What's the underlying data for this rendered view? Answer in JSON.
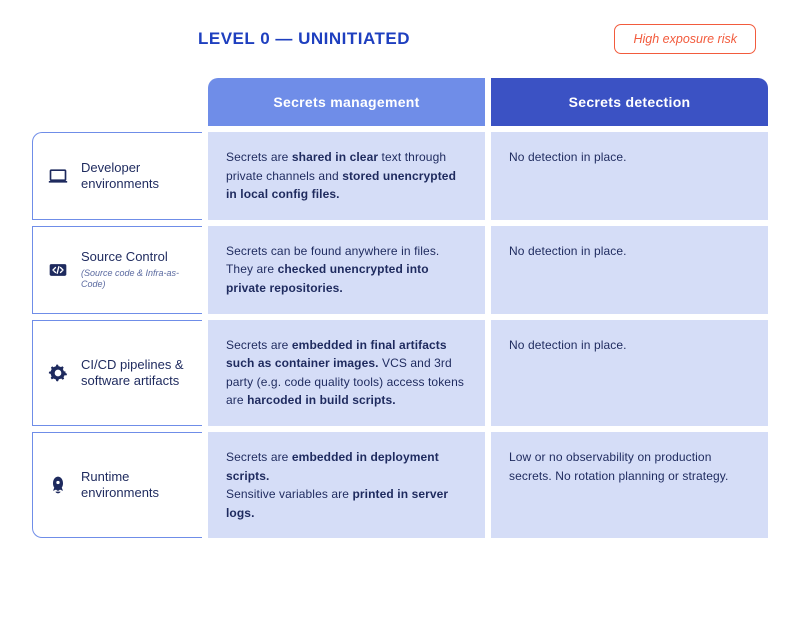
{
  "header": {
    "title": "LEVEL 0 — UNINITIATED",
    "risk_label": "High exposure risk"
  },
  "colors": {
    "title": "#1e3fbf",
    "risk_border": "#f25b3d",
    "col_mgmt_bg": "#6f8de8",
    "col_det_bg": "#3b52c4",
    "cell_bg": "#d5ddf7",
    "row_border": "#6f8de8",
    "text": "#1e2a5e"
  },
  "columns": {
    "management": "Secrets management",
    "detection": "Secrets detection"
  },
  "rows": [
    {
      "icon": "laptop-icon",
      "label": "Developer environments",
      "sub": "",
      "management_html": "Secrets are <b>shared in clear</b> text through private channels and <b>stored unencrypted in local config files.</b>",
      "detection_html": "No detection in place."
    },
    {
      "icon": "code-icon",
      "label": "Source Control",
      "sub": "(Source code & Infra-as-Code)",
      "management_html": "Secrets can be found anywhere in files. They are <b>checked unencrypted into private repositories.</b>",
      "detection_html": "No detection in place."
    },
    {
      "icon": "gear-icon",
      "label": "CI/CD pipelines & software artifacts",
      "sub": "",
      "management_html": "Secrets are <b>embedded in final artifacts such as container images.</b> VCS and 3rd party (e.g. code quality tools) access tokens are <b>harcoded in build scripts.</b>",
      "detection_html": "No detection in place."
    },
    {
      "icon": "rocket-icon",
      "label": "Runtime environments",
      "sub": "",
      "management_html": "Secrets are <b>embedded in deployment scripts.</b><br>Sensitive variables are <b>printed in server logs.</b>",
      "detection_html": "Low or no observability on production secrets. No rotation planning or strategy."
    }
  ]
}
